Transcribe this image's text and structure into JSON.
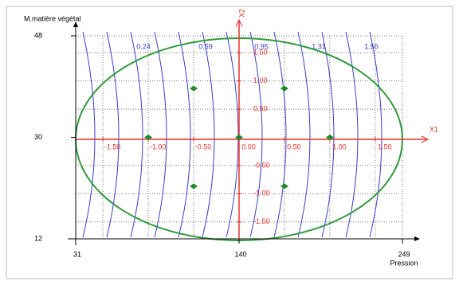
{
  "chart_data": {
    "type": "contour",
    "x_label": "Pression",
    "y_label": "M.matière végétal",
    "xlim": [
      31,
      249
    ],
    "ylim": [
      12,
      48
    ],
    "xticks": [
      31,
      140,
      249
    ],
    "yticks": [
      12,
      30,
      48
    ],
    "x1_label": "X1",
    "x2_label": "X2",
    "x1lim": [
      -1.8,
      1.8
    ],
    "x2lim": [
      -1.8,
      1.8
    ],
    "x1ticks": [
      {
        "value": -1.5,
        "label": "-1.50"
      },
      {
        "value": -1,
        "label": "-1.00"
      },
      {
        "value": -0.5,
        "label": "-0.50"
      },
      {
        "value": 0,
        "label": "0.00"
      },
      {
        "value": 0.5,
        "label": "0.50"
      },
      {
        "value": 1,
        "label": "1.00"
      },
      {
        "value": 1.5,
        "label": "1.50"
      }
    ],
    "x2ticks": [
      {
        "value": 1.5,
        "label": "1.50"
      },
      {
        "value": 1,
        "label": "1.00"
      },
      {
        "value": 0.5,
        "label": "0.50"
      },
      {
        "value": -0.5,
        "label": "-0.50"
      },
      {
        "value": -1,
        "label": "-1.00"
      },
      {
        "value": -1.5,
        "label": "-1.50"
      }
    ],
    "contour_levels": [
      0.24,
      0.59,
      0.95,
      1.31,
      1.56
    ],
    "points": {
      "color": "#1f8a2a",
      "x": [
        0,
        1,
        -1,
        0.5,
        -0.5,
        0.5,
        -0.5
      ],
      "y": [
        0,
        0,
        0,
        0.866,
        0.866,
        -0.866,
        -0.866
      ]
    },
    "ellipse_color": "#2e9a3a",
    "contour_color": "#3a3fc8",
    "coded_axis_color": "#e8302a",
    "grid": true
  }
}
